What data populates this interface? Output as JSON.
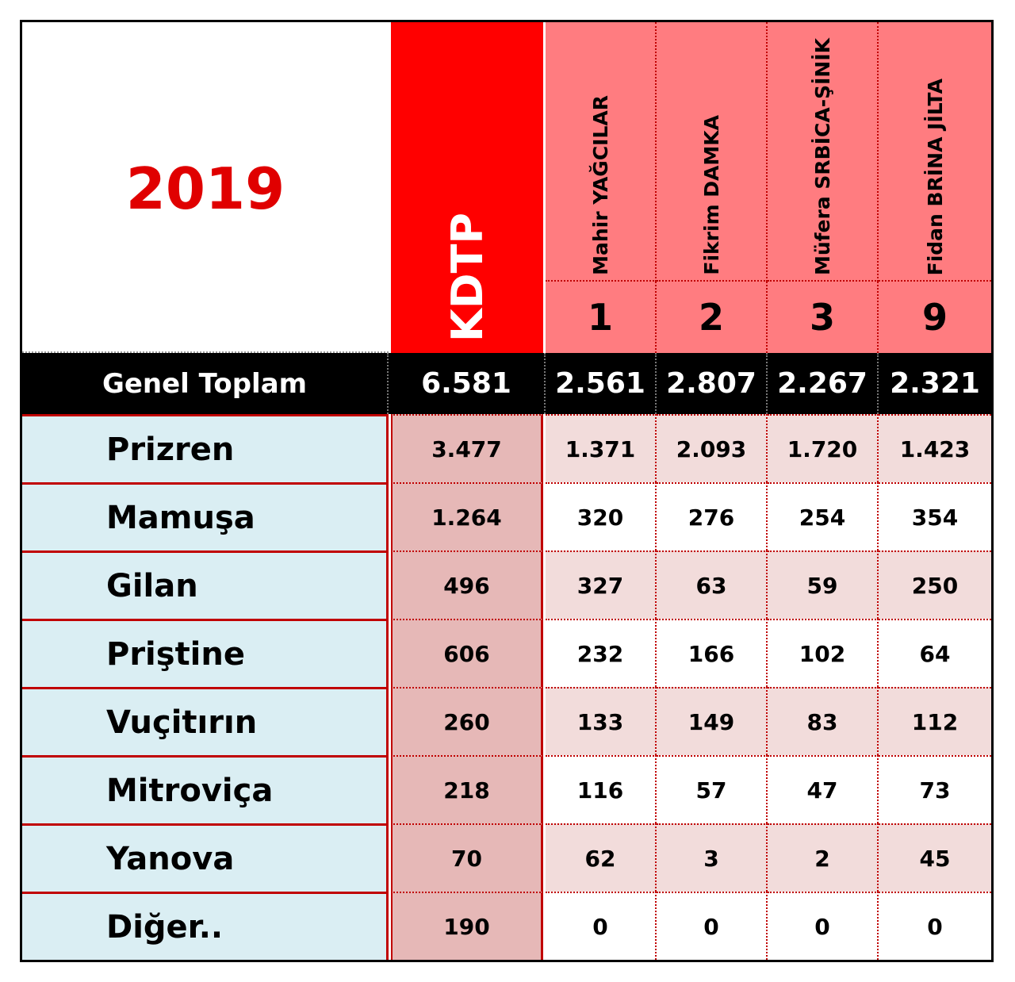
{
  "title": "2019",
  "party": "KDTP",
  "candidates": [
    {
      "name": "Mahir YAĞCILAR",
      "number": "1"
    },
    {
      "name": "Fikrim DAMKA",
      "number": "2"
    },
    {
      "name": "Müfera SRBİCA-ŞİNİK",
      "number": "3"
    },
    {
      "name": "Fidan BRİNA JİLTA",
      "number": "9"
    }
  ],
  "total": {
    "label": "Genel Toplam",
    "party": "6.581",
    "candidates": [
      "2.561",
      "2.807",
      "2.267",
      "2.321"
    ]
  },
  "rows": [
    {
      "label": "Prizren",
      "party": "3.477",
      "candidates": [
        "1.371",
        "2.093",
        "1.720",
        "1.423"
      ]
    },
    {
      "label": "Mamuşa",
      "party": "1.264",
      "candidates": [
        "320",
        "276",
        "254",
        "354"
      ]
    },
    {
      "label": "Gilan",
      "party": "496",
      "candidates": [
        "327",
        "63",
        "59",
        "250"
      ]
    },
    {
      "label": "Priştine",
      "party": "606",
      "candidates": [
        "232",
        "166",
        "102",
        "64"
      ]
    },
    {
      "label": "Vuçitırın",
      "party": "260",
      "candidates": [
        "133",
        "149",
        "83",
        "112"
      ]
    },
    {
      "label": "Mitroviça",
      "party": "218",
      "candidates": [
        "116",
        "57",
        "47",
        "73"
      ]
    },
    {
      "label": "Yanova",
      "party": "70",
      "candidates": [
        "62",
        "3",
        "2",
        "45"
      ]
    },
    {
      "label": "Diğer..",
      "party": "190",
      "candidates": [
        "0",
        "0",
        "0",
        "0"
      ]
    }
  ]
}
